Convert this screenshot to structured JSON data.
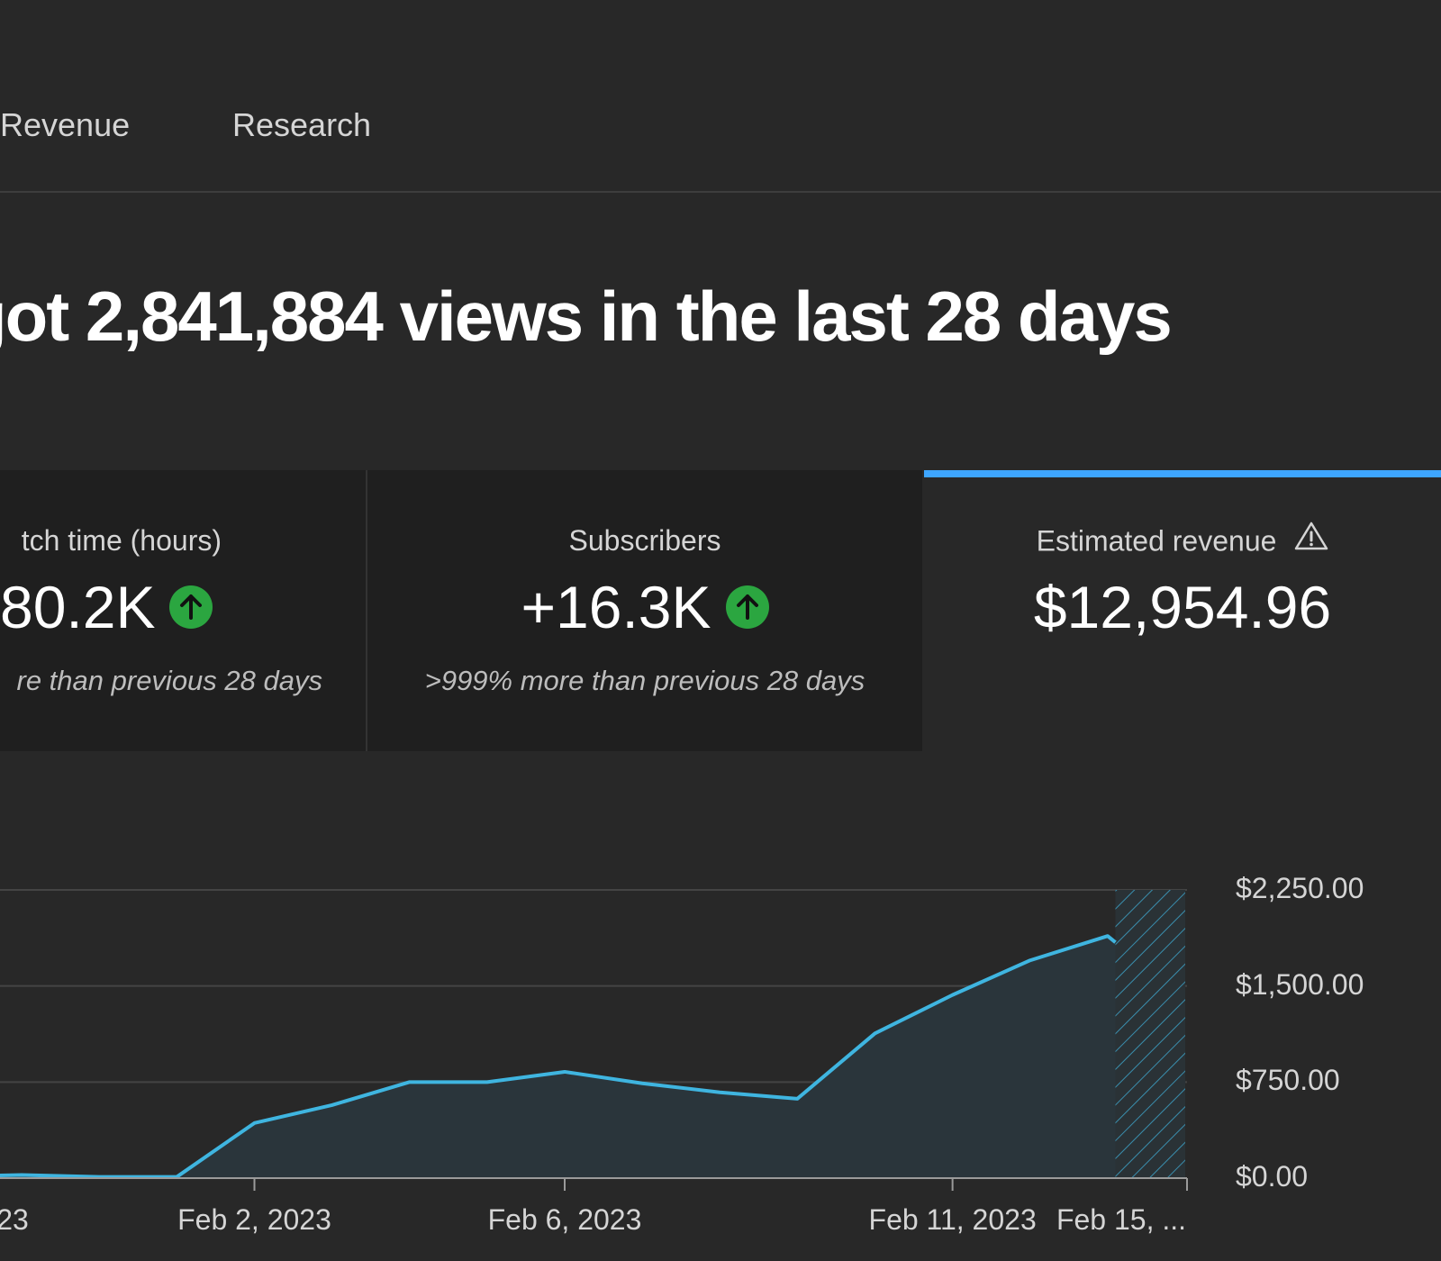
{
  "tabs": {
    "revenue": "Revenue",
    "research": "Research"
  },
  "headline": "got 2,841,884 views in the last 28 days",
  "cards": {
    "watch_time": {
      "title": "tch time (hours)",
      "value": "80.2K",
      "note": "re than previous 28 days",
      "trend_icon": "arrow-up-circle-icon"
    },
    "subscribers": {
      "title": "Subscribers",
      "value": "+16.3K",
      "note": ">999% more than previous 28 days",
      "trend_icon": "arrow-up-circle-icon"
    },
    "estimated_revenue": {
      "title": "Estimated revenue",
      "value": "$12,954.96",
      "warning_icon": "warning-triangle-icon",
      "active": true
    }
  },
  "colors": {
    "background": "#282828",
    "card_background": "#1f1f1f",
    "accent": "#3ea6ff",
    "line": "#3fb5e0",
    "up": "#2ba640"
  },
  "chart_data": {
    "type": "area",
    "y_ticks": [
      "$2,250.00",
      "$1,500.00",
      "$750.00",
      "$0.00"
    ],
    "x_ticks": [
      "23",
      "Feb 2, 2023",
      "Feb 6, 2023",
      "Feb 11, 2023",
      "Feb 15, ..."
    ],
    "ylim": [
      0,
      2250
    ],
    "grid": true,
    "x": [
      "Jan 29",
      "Jan 30",
      "Jan 31",
      "Feb 1",
      "Feb 2",
      "Feb 3",
      "Feb 4",
      "Feb 5",
      "Feb 6",
      "Feb 7",
      "Feb 8",
      "Feb 9",
      "Feb 10",
      "Feb 11",
      "Feb 12",
      "Feb 13",
      "Feb 14"
    ],
    "values": [
      10,
      25,
      10,
      10,
      430,
      570,
      750,
      750,
      830,
      740,
      670,
      620,
      1130,
      1430,
      1700,
      1890,
      1400
    ],
    "incomplete_from_index": 16
  }
}
